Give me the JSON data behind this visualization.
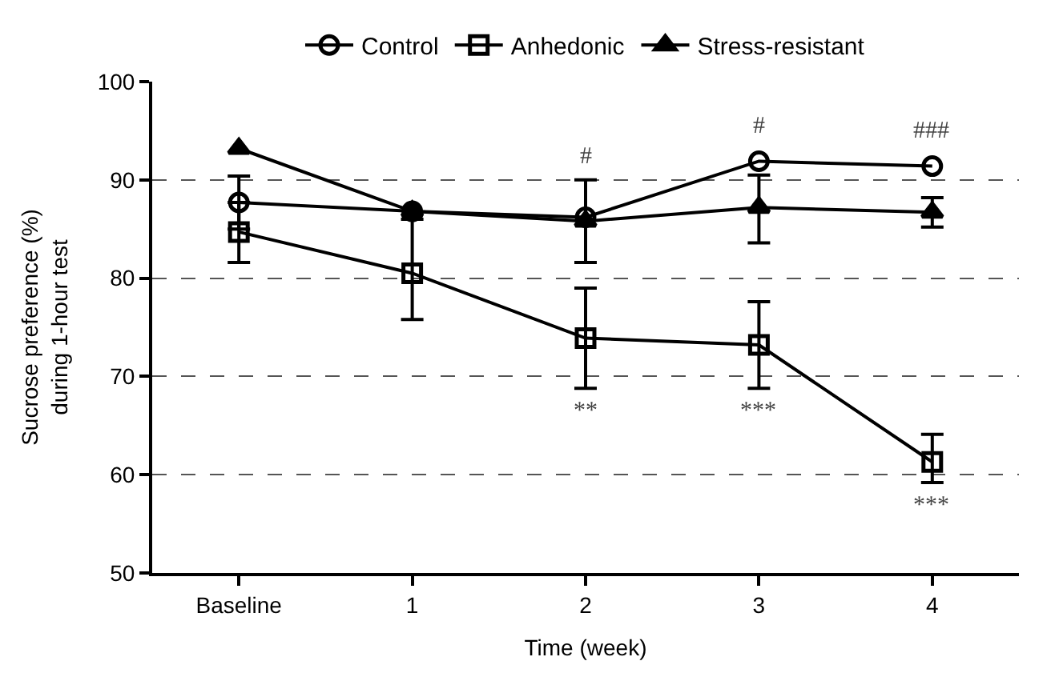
{
  "chart_data": {
    "type": "line",
    "categories": [
      "Baseline",
      "1",
      "2",
      "3",
      "4"
    ],
    "xlabel": "Time (week)",
    "ylabel": "Sucrose preference (%)\nduring 1-hour test",
    "ylim": [
      50,
      100
    ],
    "yticks": [
      50,
      60,
      70,
      80,
      90,
      100
    ],
    "grid": "y",
    "legend": "top",
    "series": [
      {
        "name": "Control",
        "color": "#000000",
        "marker": "circle",
        "values": [
          87.7,
          86.8,
          86.2,
          91.9,
          91.4
        ],
        "errors": [
          2.7,
          null,
          [
            81.6,
            90.0
          ],
          null,
          null
        ]
      },
      {
        "name": "Anhedonic",
        "color": "#000000",
        "marker": "square",
        "values": [
          84.7,
          80.5,
          73.9,
          73.2,
          61.3
        ],
        "errors": [
          [
            81.6,
            87.7
          ],
          [
            75.8,
            86.0
          ],
          [
            68.8,
            79.0
          ],
          [
            68.8,
            77.6
          ],
          [
            59.2,
            64.1
          ]
        ]
      },
      {
        "name": "Stress-resistant",
        "color": "#000000",
        "marker": "triangle",
        "values": [
          93.2,
          86.8,
          85.8,
          87.2,
          86.7
        ],
        "errors": [
          null,
          null,
          null,
          [
            83.6,
            90.5
          ],
          [
            85.2,
            88.2
          ]
        ]
      }
    ],
    "annotations": [
      {
        "text": "#",
        "x": "2",
        "y": 86.2
      },
      {
        "text": "#",
        "x": "3",
        "y": 91.9
      },
      {
        "text": "###",
        "x": "4",
        "y": 91.4
      },
      {
        "text": "**",
        "x": "2",
        "y": 73.9
      },
      {
        "text": "***",
        "x": "3",
        "y": 73.2
      },
      {
        "text": "***",
        "x": "4",
        "y": 61.3
      }
    ]
  }
}
